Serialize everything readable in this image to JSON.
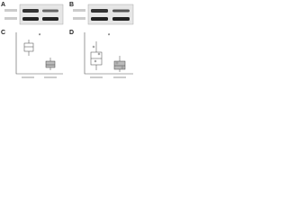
{
  "panels": [
    {
      "label": "A"
    },
    {
      "label": "B"
    },
    {
      "label": "C",
      "marker": "*"
    },
    {
      "label": "D",
      "marker": "*"
    }
  ]
}
